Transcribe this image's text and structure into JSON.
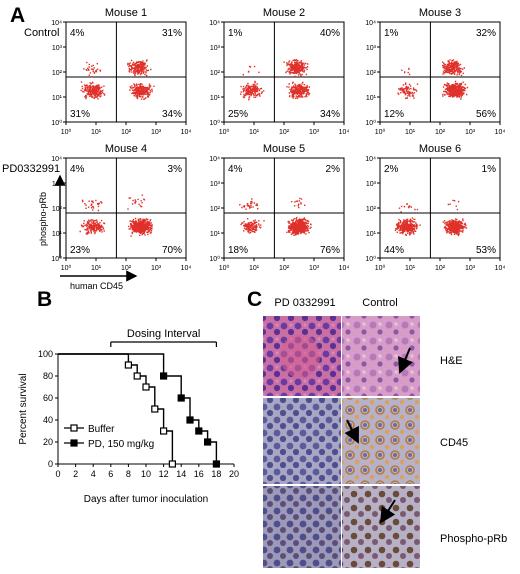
{
  "panel_a": {
    "letter": "A",
    "rows": [
      {
        "label": "Control",
        "plots": [
          {
            "title": "Mouse 1",
            "q_ul": "4%",
            "q_ur": "31%",
            "q_ll": "31%",
            "q_lr": "34%"
          },
          {
            "title": "Mouse 2",
            "q_ul": "1%",
            "q_ur": "40%",
            "q_ll": "25%",
            "q_lr": "34%"
          },
          {
            "title": "Mouse 3",
            "q_ul": "1%",
            "q_ur": "32%",
            "q_ll": "12%",
            "q_lr": "56%"
          }
        ]
      },
      {
        "label": "PD0332991",
        "plots": [
          {
            "title": "Mouse 4",
            "q_ul": "4%",
            "q_ur": "3%",
            "q_ll": "23%",
            "q_lr": "70%"
          },
          {
            "title": "Mouse 5",
            "q_ul": "4%",
            "q_ur": "2%",
            "q_ll": "18%",
            "q_lr": "76%"
          },
          {
            "title": "Mouse 6",
            "q_ul": "2%",
            "q_ur": "1%",
            "q_ll": "44%",
            "q_lr": "53%"
          }
        ]
      }
    ],
    "tick_labels": [
      "10⁰",
      "10¹",
      "10²",
      "10³",
      "10⁴"
    ],
    "ylabel": "phospho-pRb",
    "xlabel": "human CD45",
    "dot_color": "#e0302a"
  },
  "panel_b": {
    "letter": "B",
    "dosing_label": "Dosing Interval",
    "ylabel": "Percent survival",
    "xlabel": "Days after tumor inoculation"
  },
  "chart_data": {
    "type": "line",
    "title": "",
    "xlabel": "Days after tumor inoculation",
    "ylabel": "Percent survival",
    "xlim": [
      0,
      20
    ],
    "ylim": [
      0,
      100
    ],
    "xticks": [
      "0",
      "2",
      "4",
      "6",
      "8",
      "10",
      "12",
      "14",
      "16",
      "18",
      "20"
    ],
    "yticks": [
      "0",
      "20",
      "40",
      "60",
      "80",
      "100"
    ],
    "dosing_interval": [
      6,
      18
    ],
    "series": [
      {
        "name": "Buffer",
        "marker": "open-square",
        "x": [
          0,
          8,
          9,
          10,
          11,
          12,
          13
        ],
        "y": [
          100,
          90,
          80,
          70,
          50,
          30,
          0
        ]
      },
      {
        "name": "PD, 150 mg/kg",
        "marker": "filled-square",
        "x": [
          0,
          12,
          14,
          15,
          16,
          17,
          18
        ],
        "y": [
          100,
          80,
          60,
          40,
          30,
          20,
          0
        ]
      }
    ]
  },
  "panel_c": {
    "letter": "C",
    "col_labels": [
      "PD 0332991",
      "Control"
    ],
    "row_labels": [
      "H&E",
      "CD45",
      "Phospho-pRb"
    ]
  }
}
